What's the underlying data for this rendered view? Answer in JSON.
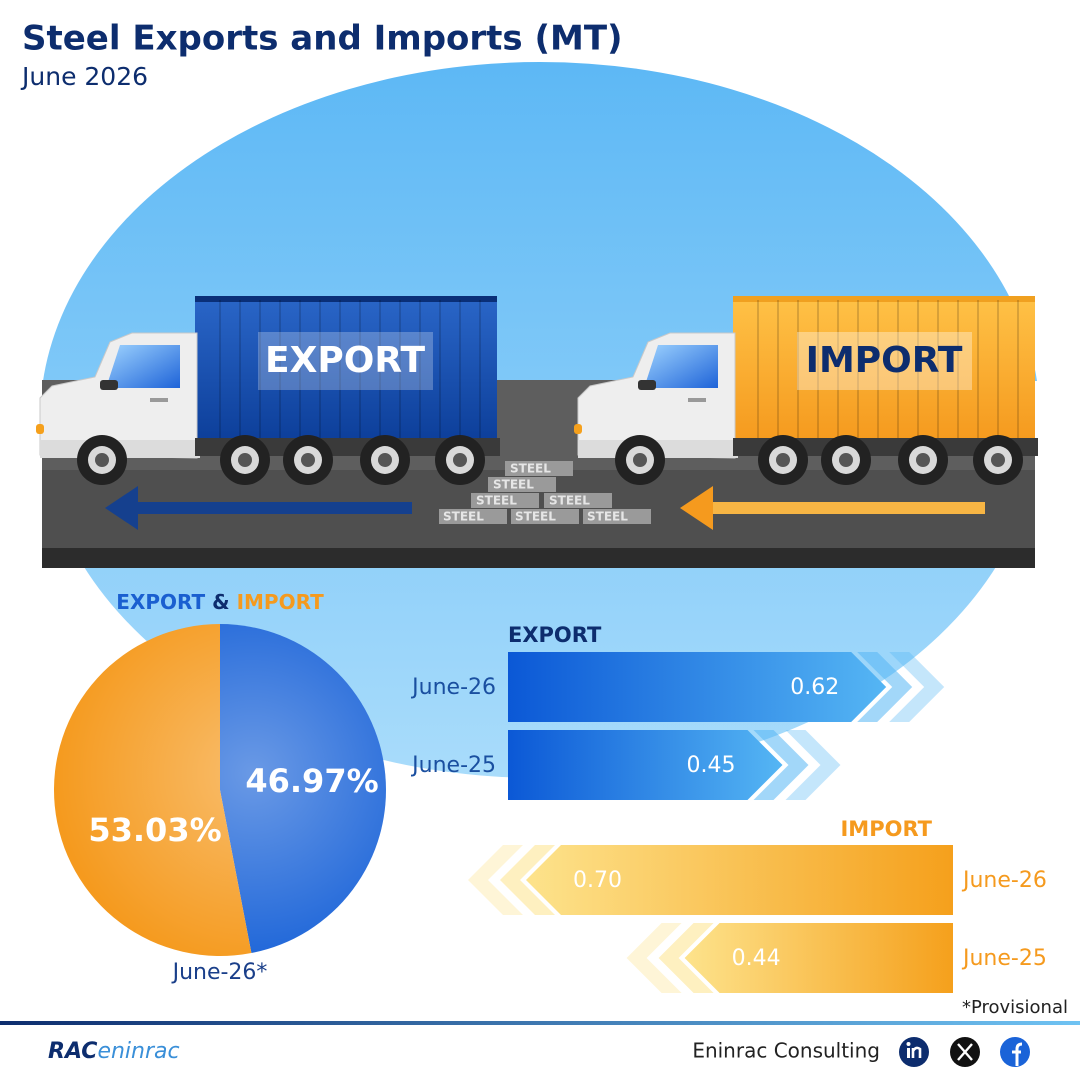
{
  "header": {
    "title": "Steel Exports and Imports (MT)",
    "subtitle": "June 2026"
  },
  "illustration": {
    "export_label": "EXPORT",
    "import_label": "IMPORT",
    "cargo_label": "STEEL"
  },
  "chart_data": [
    {
      "type": "pie",
      "categories": [
        "EXPORT",
        "IMPORT"
      ],
      "legend_separator": "&",
      "values": [
        46.97,
        53.03
      ],
      "value_labels": [
        "46.97%",
        "53.03%"
      ],
      "colors": [
        "#1a63d8",
        "#f59a1e"
      ],
      "caption": "June-26*"
    },
    {
      "type": "bar",
      "title": "EXPORT",
      "direction": "right",
      "categories": [
        "June-26",
        "June-25"
      ],
      "values": [
        0.62,
        0.45
      ],
      "colors": [
        "#0b58d6",
        "#55b6f4"
      ]
    },
    {
      "type": "bar",
      "title": "IMPORT",
      "direction": "left",
      "categories": [
        "June-26",
        "June-25"
      ],
      "values": [
        0.7,
        0.44
      ],
      "value_labels": [
        "0.70",
        "0.44"
      ],
      "colors": [
        "#f5a01c",
        "#fde38c"
      ]
    }
  ],
  "footer": {
    "note": "*Provisional",
    "brand": "Eninrac Consulting",
    "logo": [
      "RAC",
      "eninrac"
    ]
  }
}
